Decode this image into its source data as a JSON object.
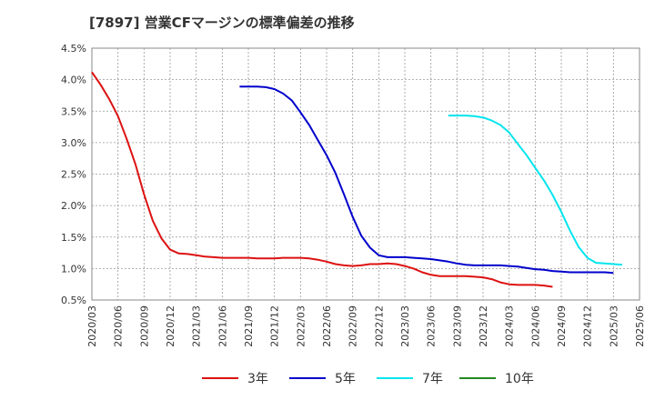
{
  "chart_data": {
    "type": "line",
    "title": "[7897]  営業CFマージンの標準偏差の推移",
    "xlabel": "",
    "ylabel": "",
    "ylim": [
      0.5,
      4.5
    ],
    "yticks": [
      "0.5%",
      "1.0%",
      "1.5%",
      "2.0%",
      "2.5%",
      "3.0%",
      "3.5%",
      "4.0%",
      "4.5%"
    ],
    "xticks": [
      "2020/03",
      "2020/06",
      "2020/09",
      "2020/12",
      "2021/03",
      "2021/06",
      "2021/09",
      "2021/12",
      "2022/03",
      "2022/06",
      "2022/09",
      "2022/12",
      "2023/03",
      "2023/06",
      "2023/09",
      "2023/12",
      "2024/03",
      "2024/06",
      "2024/09",
      "2024/12",
      "2025/03",
      "2025/06"
    ],
    "grid": true,
    "legend_position": "bottom",
    "series": [
      {
        "name": "3年",
        "color": "#dd1111",
        "start": "2020/03",
        "values": [
          4.12,
          3.92,
          3.69,
          3.42,
          3.06,
          2.66,
          2.18,
          1.76,
          1.48,
          1.3,
          1.24,
          1.23,
          1.21,
          1.19,
          1.18,
          1.17,
          1.17,
          1.17,
          1.17,
          1.16,
          1.16,
          1.16,
          1.17,
          1.17,
          1.17,
          1.16,
          1.14,
          1.11,
          1.07,
          1.05,
          1.04,
          1.05,
          1.07,
          1.07,
          1.08,
          1.07,
          1.04,
          1.0,
          0.94,
          0.9,
          0.88,
          0.88,
          0.88,
          0.88,
          0.87,
          0.86,
          0.83,
          0.78,
          0.75,
          0.74,
          0.74,
          0.74,
          0.73,
          0.71
        ]
      },
      {
        "name": "5年",
        "color": "#0000cc",
        "start": "2021/08",
        "values": [
          3.89,
          3.89,
          3.89,
          3.88,
          3.85,
          3.78,
          3.67,
          3.48,
          3.28,
          3.04,
          2.8,
          2.52,
          2.18,
          1.82,
          1.52,
          1.33,
          1.21,
          1.18,
          1.18,
          1.18,
          1.17,
          1.16,
          1.15,
          1.13,
          1.11,
          1.08,
          1.06,
          1.05,
          1.05,
          1.05,
          1.05,
          1.04,
          1.03,
          1.01,
          0.99,
          0.98,
          0.96,
          0.95,
          0.94,
          0.94,
          0.94,
          0.94,
          0.94,
          0.93
        ]
      },
      {
        "name": "7年",
        "color": "#00e5ee",
        "start": "2023/08",
        "values": [
          3.43,
          3.43,
          3.43,
          3.42,
          3.4,
          3.35,
          3.28,
          3.16,
          2.98,
          2.8,
          2.6,
          2.4,
          2.17,
          1.9,
          1.6,
          1.34,
          1.17,
          1.09,
          1.08,
          1.07,
          1.06
        ]
      },
      {
        "name": "10年",
        "color": "#228822",
        "start": "",
        "values": []
      }
    ]
  }
}
